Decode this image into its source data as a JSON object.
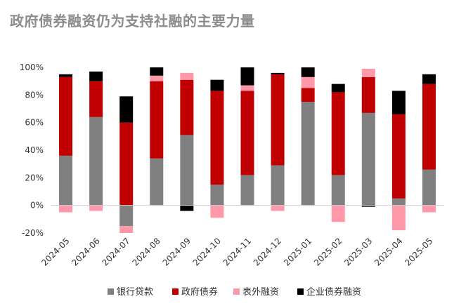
{
  "chart_data": {
    "type": "bar",
    "stacked": true,
    "title": "政府债券融资仍为支持社融的主要力量",
    "categories": [
      "2024-05",
      "2024-06",
      "2024-07",
      "2024-08",
      "2024-09",
      "2024-10",
      "2024-11",
      "2024-12",
      "2025-01",
      "2025-02",
      "2025-03",
      "2025-04",
      "2025-05"
    ],
    "series": [
      {
        "name": "银行贷款",
        "color": "#808080",
        "values": [
          36,
          64,
          -15,
          34,
          51,
          15,
          22,
          29,
          75,
          22,
          67,
          5,
          26
        ]
      },
      {
        "name": "政府债券",
        "color": "#c00000",
        "values": [
          57,
          26,
          60,
          56,
          40,
          68,
          61,
          66,
          10,
          60,
          26,
          61,
          62
        ]
      },
      {
        "name": "表外融资",
        "color": "#ff99aa",
        "values": [
          -5,
          -4,
          -5,
          4,
          5,
          -9,
          4,
          -4,
          8,
          -12,
          6,
          -18,
          -5
        ]
      },
      {
        "name": "企业债券融资",
        "color": "#000000",
        "values": [
          2,
          7,
          19,
          6,
          -4,
          8,
          13,
          1,
          7,
          6,
          -1,
          17,
          7
        ]
      }
    ],
    "ylim": [
      -20,
      100
    ],
    "yticks": [
      "-20%",
      "0%",
      "20%",
      "40%",
      "60%",
      "80%",
      "100%"
    ],
    "xlabel": "",
    "ylabel": "",
    "legend_position": "bottom",
    "grid": false
  }
}
